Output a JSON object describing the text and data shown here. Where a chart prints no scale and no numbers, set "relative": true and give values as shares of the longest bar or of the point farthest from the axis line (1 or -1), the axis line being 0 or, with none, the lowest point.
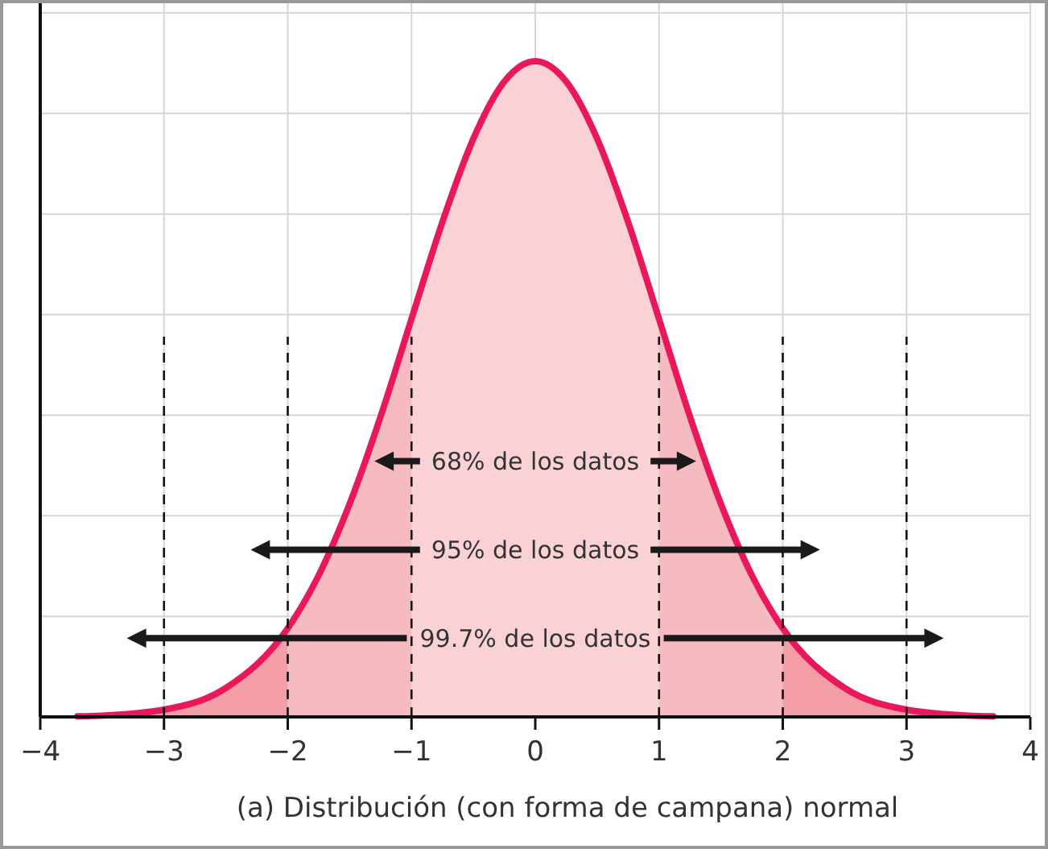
{
  "chart_data": {
    "type": "area",
    "relative": true,
    "xlabel": "(a) Distribución (con forma de campana) normal",
    "x": [
      -3.7,
      -3.5,
      -3,
      -2.5,
      -2,
      -1.75,
      -1.5,
      -1.25,
      -1,
      -0.75,
      -0.5,
      -0.25,
      0,
      0.25,
      0.5,
      0.75,
      1,
      1.25,
      1.5,
      1.75,
      2,
      2.5,
      3,
      3.5,
      3.7
    ],
    "series": [
      {
        "color": "#e8185a",
        "values": [
          0.001,
          0.002,
          0.011,
          0.044,
          0.135,
          0.216,
          0.325,
          0.458,
          0.607,
          0.755,
          0.882,
          0.969,
          1,
          0.969,
          0.882,
          0.755,
          0.607,
          0.458,
          0.325,
          0.216,
          0.135,
          0.044,
          0.011,
          0.002,
          0.001
        ]
      }
    ],
    "xlim": [
      -4,
      4
    ],
    "xticks": [
      {
        "value": -4,
        "label": "−4"
      },
      {
        "value": -3,
        "label": "−3"
      },
      {
        "value": -2,
        "label": "−2"
      },
      {
        "value": -1,
        "label": "−1"
      },
      0,
      1,
      2,
      3,
      4
    ],
    "grid": true,
    "bands": [
      {
        "axis": "x",
        "from": -3.7,
        "to": -2,
        "color": "#f4a3a8"
      },
      {
        "axis": "x",
        "from": -2,
        "to": -1,
        "color": "#f7c2c4"
      },
      {
        "axis": "x",
        "from": -1,
        "to": 1,
        "color": "#fbd9d9"
      },
      {
        "axis": "x",
        "from": 1,
        "to": 2,
        "color": "#f7c2c4"
      },
      {
        "axis": "x",
        "from": 2,
        "to": 3.7,
        "color": "#f4a3a8"
      }
    ],
    "ref_lines": [
      {
        "axis": "x",
        "value": -1,
        "line_style": "dashed",
        "color": "#111111"
      },
      {
        "axis": "x",
        "value": 1,
        "line_style": "dashed",
        "color": "#111111"
      },
      {
        "axis": "x",
        "value": -2,
        "line_style": "dashed",
        "color": "#111111"
      },
      {
        "axis": "x",
        "value": 2,
        "line_style": "dashed",
        "color": "#111111"
      },
      {
        "axis": "x",
        "value": -3,
        "line_style": "dashed",
        "color": "#111111"
      },
      {
        "axis": "x",
        "value": 3,
        "line_style": "dashed",
        "color": "#111111"
      }
    ],
    "annotations": [
      "68% de los datos",
      "95% de los datos",
      "99.7% de los datos"
    ]
  }
}
